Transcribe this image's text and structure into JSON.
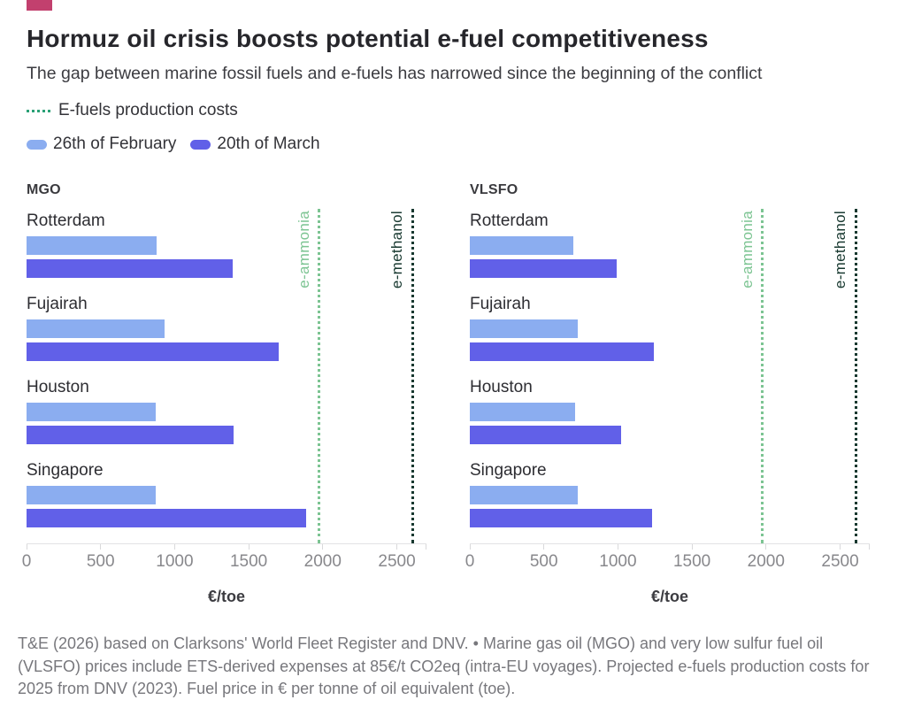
{
  "header": {
    "brand_block_color": "#c2406e",
    "title": "Hormuz oil crisis boosts potential e-fuel competitiveness",
    "subtitle": "The gap between marine fossil fuels and e-fuels has narrowed since the beginning of the conflict"
  },
  "legend": {
    "efuels": {
      "label": "E-fuels production costs",
      "color": "#2aa076"
    },
    "series": [
      {
        "label": "26th of February",
        "color": "#8badf0"
      },
      {
        "label": "20th of March",
        "color": "#6160e8"
      }
    ]
  },
  "chart_data": {
    "type": "bar",
    "orientation": "horizontal",
    "xlabel": "€/toe",
    "xlim": [
      0,
      2700
    ],
    "x_ticks": [
      0,
      500,
      1000,
      1500,
      2000,
      2500
    ],
    "grid": false,
    "categories": [
      "Rotterdam",
      "Fujairah",
      "Houston",
      "Singapore"
    ],
    "reference_lines": [
      {
        "label": "e-ammonia",
        "value": 1975,
        "color": "#7cc492"
      },
      {
        "label": "e-methanol",
        "value": 2605,
        "color": "#17382f"
      }
    ],
    "panels": [
      {
        "title": "MGO",
        "series": [
          {
            "name": "26th of February",
            "color": "#8badf0",
            "values": [
              880,
              930,
              870,
              870
            ]
          },
          {
            "name": "20th of March",
            "color": "#6160e8",
            "values": [
              1390,
              1705,
              1395,
              1890
            ]
          }
        ]
      },
      {
        "title": "VLSFO",
        "series": [
          {
            "name": "26th of February",
            "color": "#8badf0",
            "values": [
              700,
              730,
              710,
              730
            ]
          },
          {
            "name": "20th of March",
            "color": "#6160e8",
            "values": [
              990,
              1240,
              1020,
              1230
            ]
          }
        ]
      }
    ]
  },
  "footnote": "T&E (2026) based on Clarksons' World Fleet Register and DNV. • Marine gas oil (MGO) and very low sulfur fuel oil (VLSFO) prices include ETS-derived expenses at 85€/t CO2eq (intra-EU voyages). Projected e-fuels production costs for 2025 from DNV (2023). Fuel price in € per tonne of oil equivalent (toe)."
}
